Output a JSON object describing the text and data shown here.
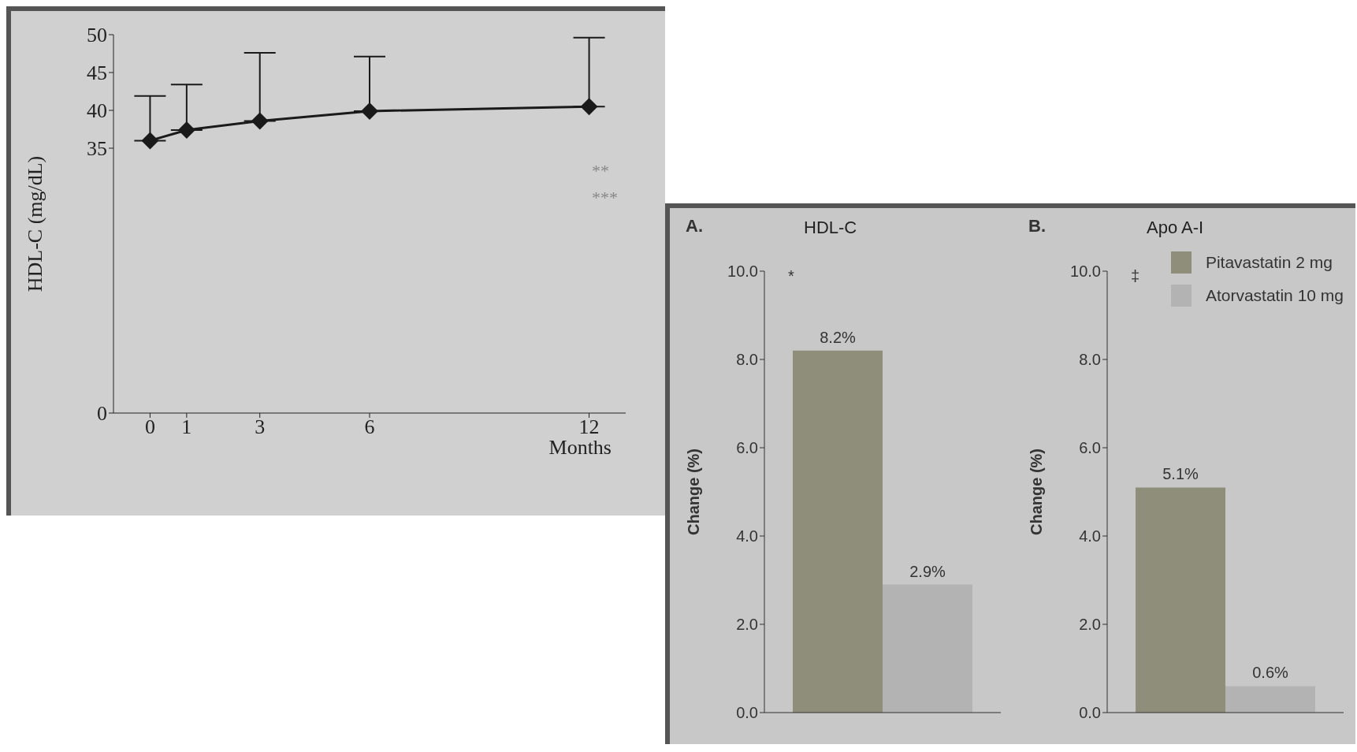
{
  "chart_data": [
    {
      "type": "line",
      "ylabel": "HDL-C (mg/dL)",
      "xlabel": "Months",
      "x": [
        0,
        1,
        3,
        6,
        12
      ],
      "xlim": [
        -1,
        13
      ],
      "xticks": [
        0,
        1,
        3,
        6,
        12
      ],
      "ylim": [
        0,
        50
      ],
      "yticks": [
        0,
        35,
        40,
        45,
        50
      ],
      "marker": "diamond",
      "legend": false,
      "grid": false,
      "series": [
        {
          "color": "#1a1a1a",
          "values": [
            36.0,
            37.4,
            38.6,
            39.9,
            40.5
          ],
          "errors": [
            [
              36.0,
              41.9
            ],
            [
              37.4,
              43.4
            ],
            [
              38.6,
              47.6
            ],
            [
              39.9,
              47.1
            ],
            [
              40.5,
              49.6
            ]
          ]
        }
      ],
      "annotations": [
        "**",
        "***"
      ]
    },
    {
      "type": "bar",
      "title": "HDL-C",
      "ylabel": "Change (%)",
      "categories": [
        null
      ],
      "ylim": [
        0,
        10
      ],
      "yticks": [
        {
          "value": 0,
          "label": "0.0"
        },
        {
          "value": 2,
          "label": "2.0"
        },
        {
          "value": 4,
          "label": "4.0"
        },
        {
          "value": 6,
          "label": "6.0"
        },
        {
          "value": 8,
          "label": "8.0"
        },
        {
          "value": 10,
          "label": "10.0"
        }
      ],
      "legend": false,
      "grid": false,
      "series": [
        {
          "color": "#8f8e7a",
          "values": [
            8.2
          ],
          "value_labels": [
            "8.2%"
          ]
        },
        {
          "color": "#b3b3b3",
          "values": [
            2.9
          ],
          "value_labels": [
            "2.9%"
          ]
        }
      ],
      "annotations": [
        "A.",
        "*"
      ]
    },
    {
      "type": "bar",
      "title": "Apo A-I",
      "ylabel": "Change (%)",
      "categories": [
        null
      ],
      "ylim": [
        0,
        10
      ],
      "yticks": [
        {
          "value": 0,
          "label": "0.0"
        },
        {
          "value": 2,
          "label": "2.0"
        },
        {
          "value": 4,
          "label": "4.0"
        },
        {
          "value": 6,
          "label": "6.0"
        },
        {
          "value": 8,
          "label": "8.0"
        },
        {
          "value": 10,
          "label": "10.0"
        }
      ],
      "legend": "top right",
      "grid": false,
      "series": [
        {
          "name": "Pitavastatin 2 mg",
          "color": "#8f8e7a",
          "values": [
            5.1
          ],
          "value_labels": [
            "5.1%"
          ]
        },
        {
          "name": "Atorvastatin 10 mg",
          "color": "#b3b3b3",
          "values": [
            0.6
          ],
          "value_labels": [
            "0.6%"
          ]
        }
      ],
      "annotations": [
        "B.",
        "‡"
      ]
    }
  ]
}
